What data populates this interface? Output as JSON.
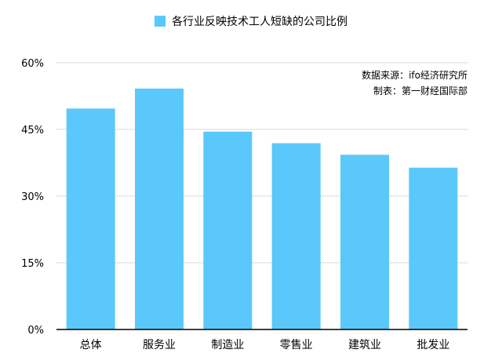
{
  "colors": {
    "bar": "#5AC8FA",
    "grid": "#D9D9D9",
    "axis": "#000000"
  },
  "chart_data": {
    "type": "bar",
    "categories": [
      "总体",
      "服务业",
      "制造业",
      "零售业",
      "建筑业",
      "批发业"
    ],
    "series": [
      {
        "name": "各行业反映技术工人短缺的公司比例",
        "values": [
          49.7,
          54.2,
          44.5,
          41.9,
          39.3,
          36.4
        ]
      }
    ],
    "ylim": [
      0,
      60
    ],
    "yticks": [
      0,
      15,
      30,
      45,
      60
    ],
    "ytick_labels": [
      "0%",
      "15%",
      "30%",
      "45%",
      "60%"
    ],
    "grid": true,
    "legend_position": "top-center"
  },
  "annotations": {
    "source": "数据来源：ifo经济研究所",
    "credit": "制表：第一财经国际部"
  }
}
